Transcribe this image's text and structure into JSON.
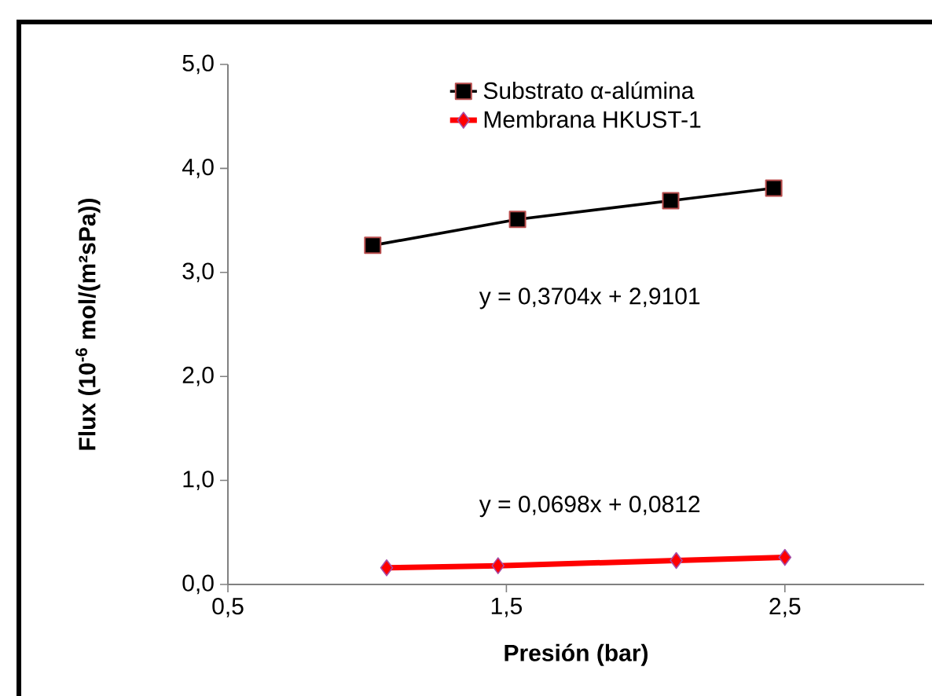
{
  "chart_data": {
    "type": "line",
    "xlabel": "Presión (bar)",
    "ylabel": "Flux  (10$^{-6}$ mol/(m²sPa))",
    "series": [
      {
        "name": "Substrato α-alúmina",
        "color": "#000000",
        "marker": "square",
        "x": [
          1.02,
          1.54,
          2.09,
          2.46
        ],
        "values": [
          3.26,
          3.51,
          3.69,
          3.81
        ]
      },
      {
        "name": "Membrana HKUST-1",
        "color": "#ff0000",
        "marker": "diamond",
        "x": [
          1.07,
          1.47,
          2.11,
          2.5
        ],
        "values": [
          0.16,
          0.18,
          0.23,
          0.26
        ]
      }
    ],
    "xlim": [
      0.5,
      3.0
    ],
    "ylim": [
      0,
      5
    ],
    "xticks": [
      {
        "value": 0.5,
        "label": "0,5"
      },
      {
        "value": 1.5,
        "label": "1,5"
      },
      {
        "value": 2.5,
        "label": "2,5"
      }
    ],
    "yticks": [
      {
        "value": 0,
        "label": "0,0"
      },
      {
        "value": 1,
        "label": "1,0"
      },
      {
        "value": 2,
        "label": "2,0"
      },
      {
        "value": 3,
        "label": "3,0"
      },
      {
        "value": 4,
        "label": "4,0"
      },
      {
        "value": 5,
        "label": "5,0"
      }
    ],
    "annotations": [
      "y = 0,3704x + 2,9101",
      "y = 0,0698x + 0,0812"
    ],
    "legend": "top",
    "grid": false
  }
}
